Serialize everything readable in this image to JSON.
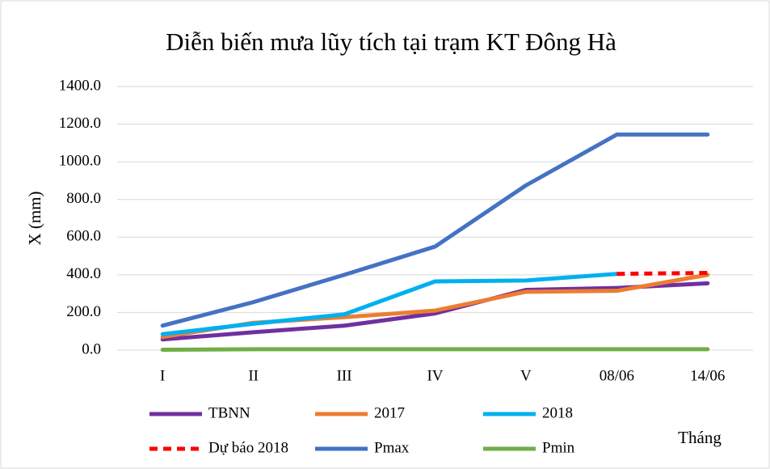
{
  "chart_data": {
    "type": "line",
    "title": "Diễn biến mưa lũy tích tại trạm KT Đông Hà",
    "y_label": "X (mm)",
    "x_label": "Tháng",
    "categories": [
      "I",
      "II",
      "III",
      "IV",
      "V",
      "08/06",
      "14/06"
    ],
    "series": [
      {
        "name": "TBNN",
        "color": "#7030a0",
        "values": [
          57,
          95,
          130,
          195,
          320,
          330,
          355
        ]
      },
      {
        "name": "2017",
        "color": "#ed7d31",
        "values": [
          70,
          145,
          175,
          210,
          310,
          315,
          400
        ]
      },
      {
        "name": "2018",
        "color": "#00b0f0",
        "values": [
          85,
          140,
          190,
          365,
          370,
          405,
          null
        ]
      },
      {
        "name": "Dự báo 2018",
        "color": "#ff0000",
        "dashed": true,
        "values": [
          null,
          null,
          null,
          null,
          null,
          405,
          410
        ]
      },
      {
        "name": "Pmax",
        "color": "#4472c4",
        "values": [
          130,
          255,
          400,
          550,
          875,
          1145,
          1145
        ]
      },
      {
        "name": "Pmin",
        "color": "#70ad47",
        "values": [
          2,
          5,
          5,
          5,
          5,
          5,
          5
        ]
      }
    ],
    "ylim": [
      0,
      1400
    ],
    "yticks": [
      {
        "value": 0,
        "label": "0.0"
      },
      {
        "value": 200,
        "label": "200.0"
      },
      {
        "value": 400,
        "label": "400.0"
      },
      {
        "value": 600,
        "label": "600.0"
      },
      {
        "value": 800,
        "label": "800.0"
      },
      {
        "value": 1000,
        "label": "1000.0"
      },
      {
        "value": 1200,
        "label": "1200.0"
      },
      {
        "value": 1400,
        "label": "1400.0"
      }
    ],
    "grid": true,
    "legend": "bottom"
  }
}
